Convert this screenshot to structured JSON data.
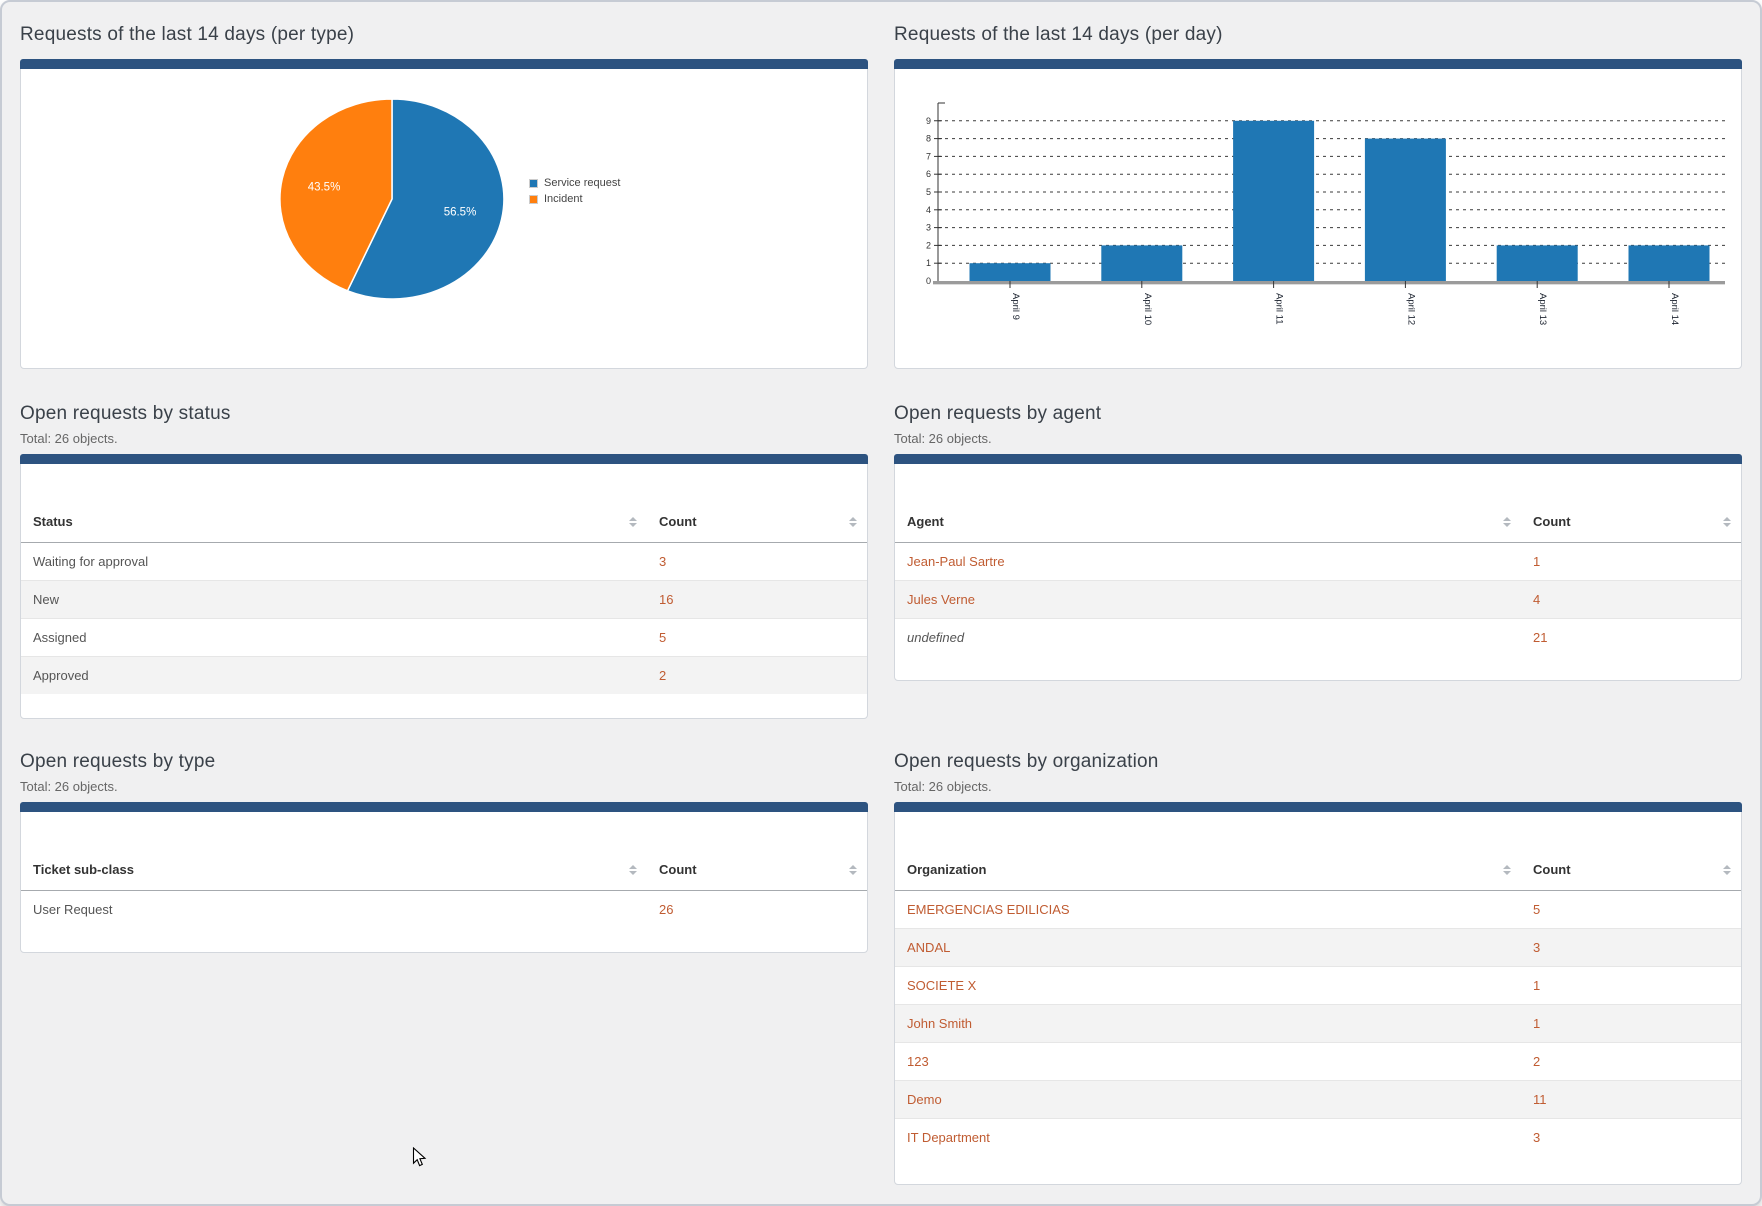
{
  "colors": {
    "panel_topbar": "#2d5380",
    "link_orange": "#c05c32",
    "pie_blue": "#1f77b4",
    "pie_orange": "#ff7f0e",
    "bar_fill": "#1f77b4"
  },
  "sections": {
    "per_type": {
      "title": "Requests of the last 14 days (per type)"
    },
    "per_day": {
      "title": "Requests of the last 14 days (per day)"
    },
    "by_status": {
      "title": "Open requests by status",
      "total": "Total: 26 objects.",
      "col1": "Status",
      "col2": "Count",
      "rows": [
        {
          "label": "Waiting for approval",
          "count": "3"
        },
        {
          "label": "New",
          "count": "16"
        },
        {
          "label": "Assigned",
          "count": "5"
        },
        {
          "label": "Approved",
          "count": "2"
        }
      ]
    },
    "by_agent": {
      "title": "Open requests by agent",
      "total": "Total: 26 objects.",
      "col1": "Agent",
      "col2": "Count",
      "rows": [
        {
          "label": "Jean-Paul Sartre",
          "count": "1"
        },
        {
          "label": "Jules Verne",
          "count": "4"
        },
        {
          "label": "undefined",
          "count": "21"
        }
      ]
    },
    "by_type": {
      "title": "Open requests by type",
      "total": "Total: 26 objects.",
      "col1": "Ticket sub-class",
      "col2": "Count",
      "rows": [
        {
          "label": "User Request",
          "count": "26"
        }
      ]
    },
    "by_org": {
      "title": "Open requests by organization",
      "total": "Total: 26 objects.",
      "col1": "Organization",
      "col2": "Count",
      "rows": [
        {
          "label": "EMERGENCIAS EDILICIAS",
          "count": "5"
        },
        {
          "label": "ANDAL",
          "count": "3"
        },
        {
          "label": "SOCIETE X",
          "count": "1"
        },
        {
          "label": "John Smith",
          "count": "1"
        },
        {
          "label": "123",
          "count": "2"
        },
        {
          "label": "Demo",
          "count": "11"
        },
        {
          "label": "IT Department",
          "count": "3"
        }
      ]
    }
  },
  "chart_data": [
    {
      "type": "pie",
      "title": "Requests of the last 14 days (per type)",
      "labels": [
        "Service request",
        "Incident"
      ],
      "values": [
        56.5,
        43.5
      ],
      "data_labels": [
        "56.5%",
        "43.5%"
      ],
      "colors": [
        "#1f77b4",
        "#ff7f0e"
      ],
      "legend_position": "right",
      "start_angle_deg": -90,
      "direction": "clockwise"
    },
    {
      "type": "bar",
      "title": "Requests of the last 14 days (per day)",
      "categories": [
        "April 9",
        "April 10",
        "April 11",
        "April 12",
        "April 13",
        "April 14"
      ],
      "values": [
        1,
        2,
        9,
        8,
        2,
        2
      ],
      "ylim": [
        0,
        9
      ],
      "ytick_step": 1,
      "grid": "horizontal-dashed",
      "bar_color": "#1f77b4",
      "xlabel_rotation_deg": 90
    }
  ]
}
